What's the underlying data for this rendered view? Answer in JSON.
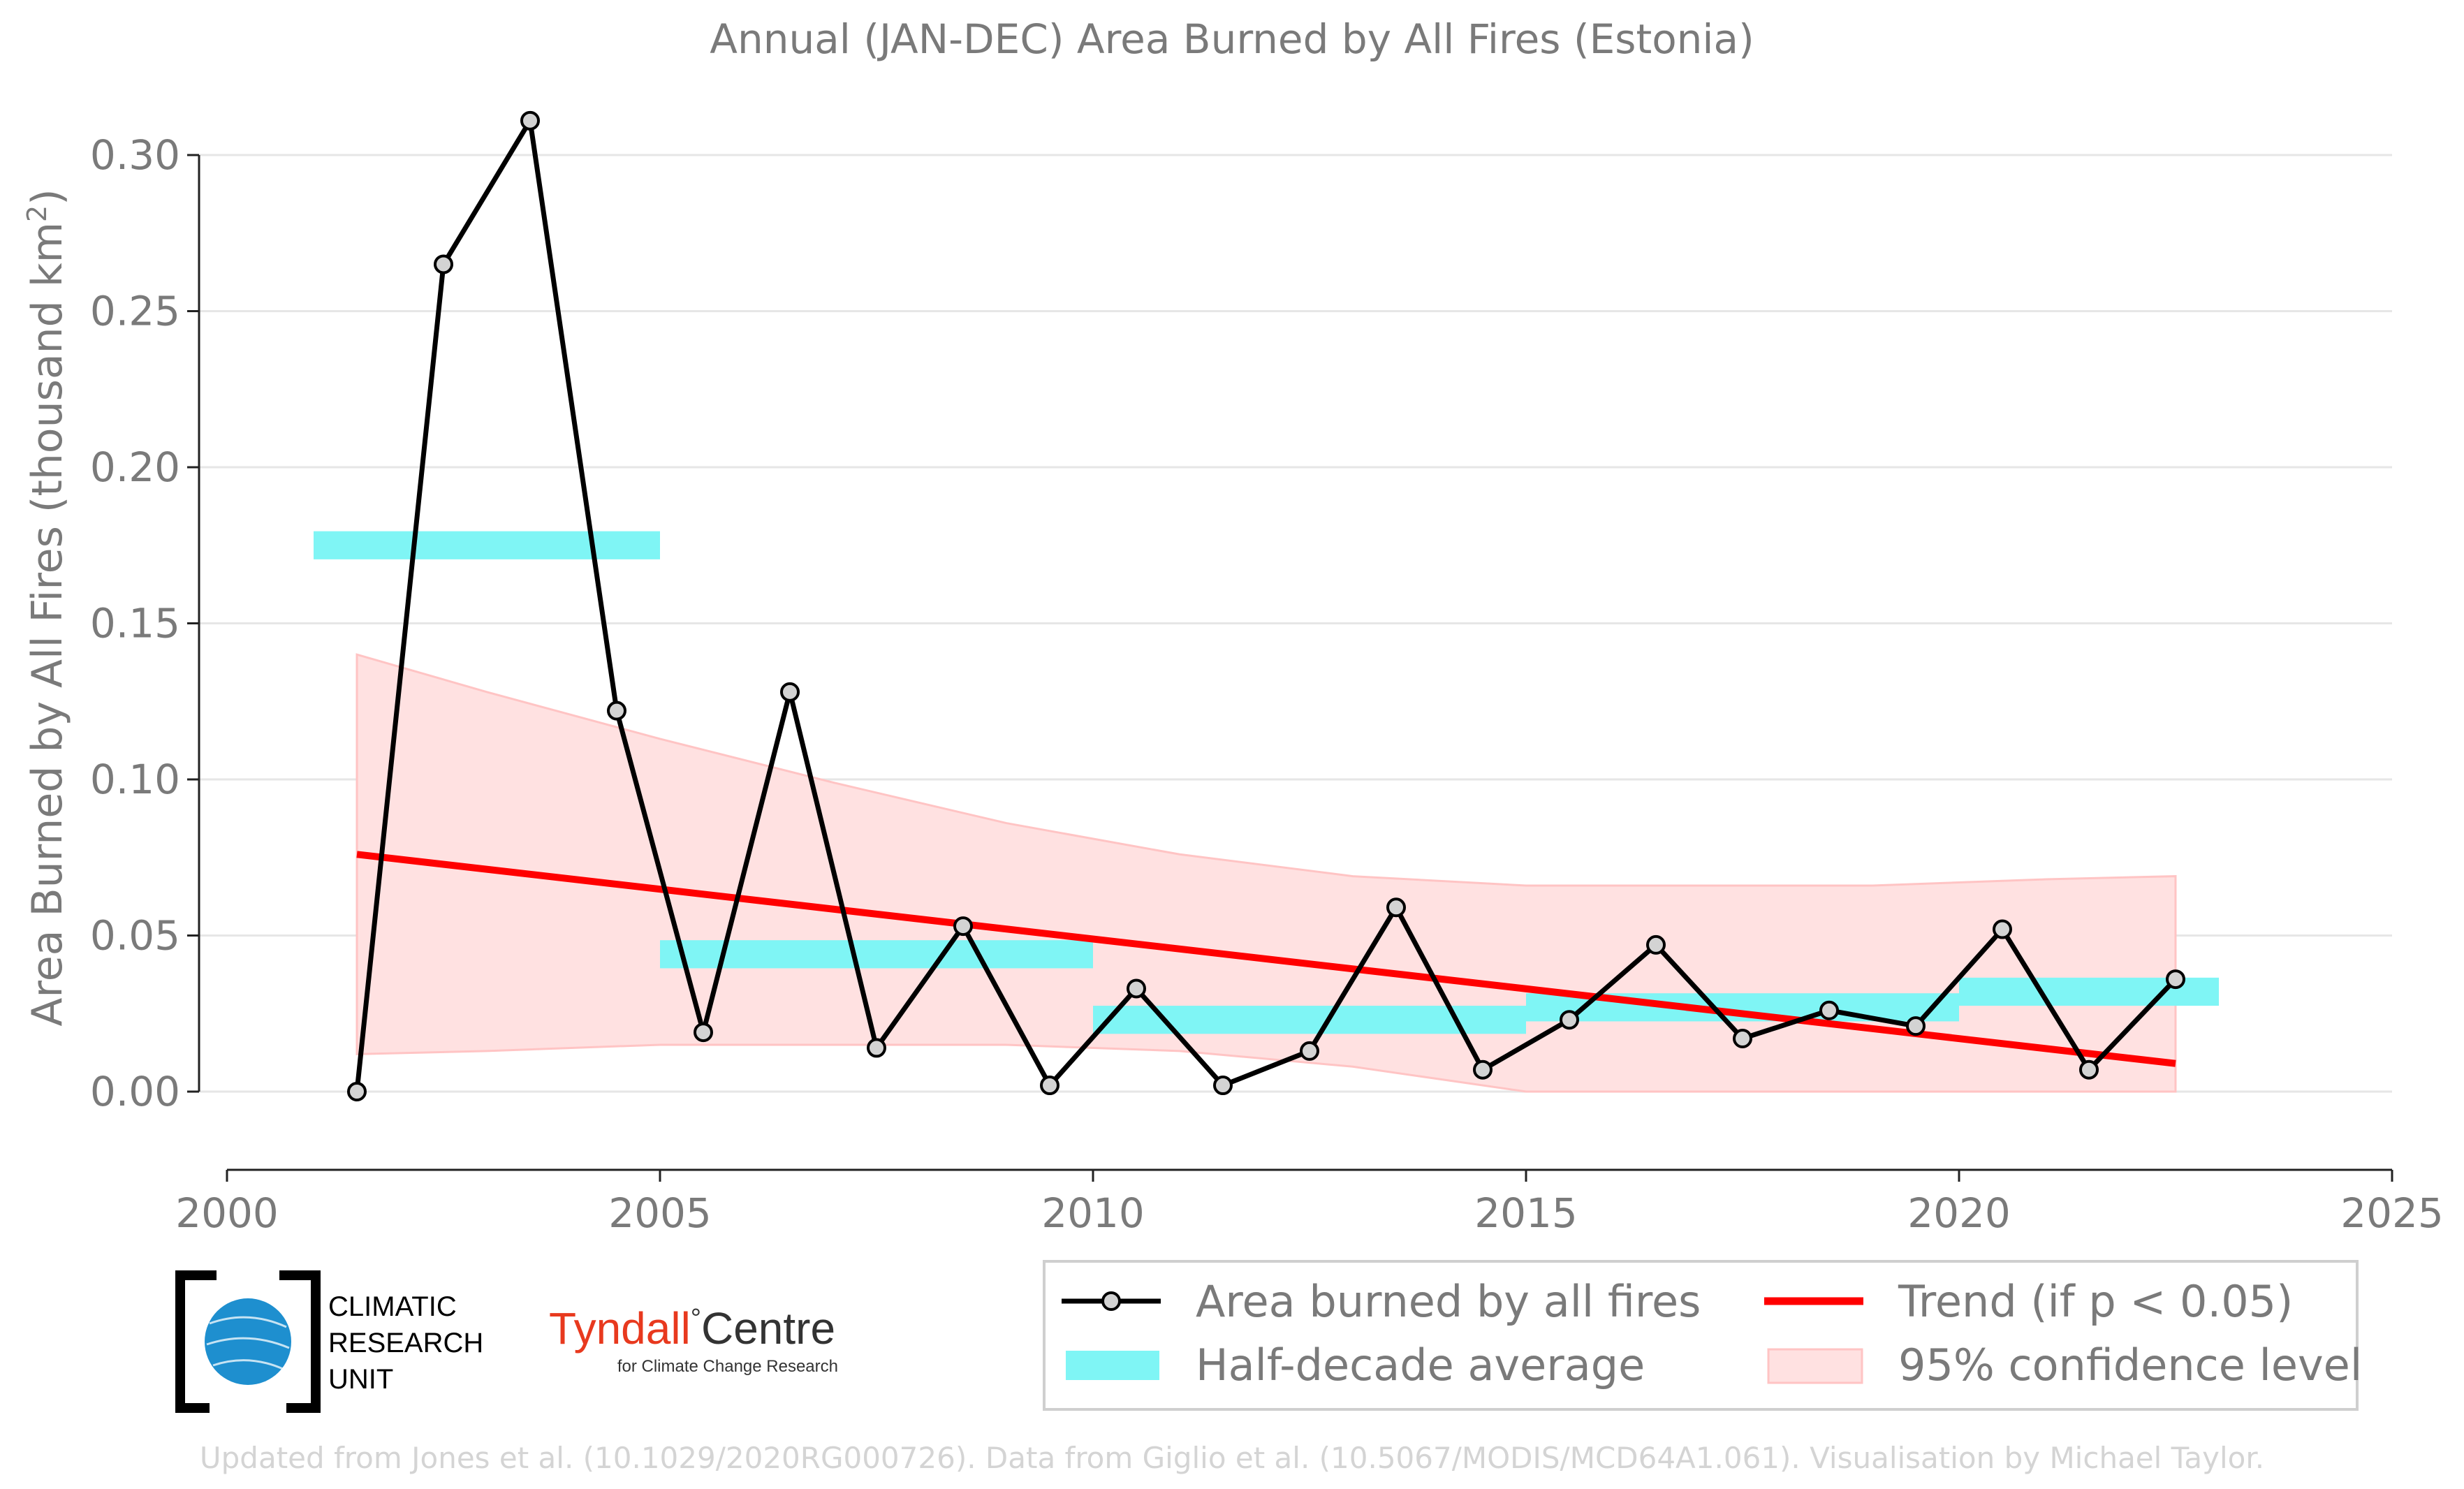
{
  "chart_data": {
    "type": "line",
    "title": "Annual (JAN-DEC) Area Burned by All Fires (Estonia)",
    "ylabel": "Area Burned by All Fires (thousand km",
    "ylabel_sup": "2",
    "ylabel_end": ")",
    "xlabel": "",
    "xlim": [
      2000,
      2025
    ],
    "ylim": [
      -0.025,
      0.31
    ],
    "x_ticks": [
      2000,
      2005,
      2010,
      2015,
      2020,
      2025
    ],
    "x_tick_labels": [
      "2000",
      "2005",
      "2010",
      "2015",
      "2020",
      "2025"
    ],
    "y_ticks": [
      0.0,
      0.05,
      0.1,
      0.15,
      0.2,
      0.25,
      0.3
    ],
    "y_tick_labels": [
      "0.00",
      "0.05",
      "0.10",
      "0.15",
      "0.20",
      "0.25",
      "0.30"
    ],
    "grid": "horizontal",
    "series": [
      {
        "name": "Area burned by all fires",
        "kind": "line-markers",
        "color": "#000000",
        "marker_fill": "#d3d3d3",
        "x": [
          2001.5,
          2002.5,
          2003.5,
          2004.5,
          2005.5,
          2006.5,
          2007.5,
          2008.5,
          2009.5,
          2010.5,
          2011.5,
          2012.5,
          2013.5,
          2014.5,
          2015.5,
          2016.5,
          2017.5,
          2018.5,
          2019.5,
          2020.5,
          2021.5,
          2022.5
        ],
        "y": [
          0.0,
          0.265,
          0.311,
          0.122,
          0.019,
          0.128,
          0.014,
          0.053,
          0.002,
          0.033,
          0.002,
          0.013,
          0.059,
          0.007,
          0.023,
          0.047,
          0.017,
          0.026,
          0.021,
          0.052,
          0.007,
          0.036
        ]
      },
      {
        "name": "Half-decade average",
        "kind": "bands",
        "color": "#7ff5f5",
        "bands": [
          {
            "x0": 2001.0,
            "x1": 2005.0,
            "y": 0.175
          },
          {
            "x0": 2005.0,
            "x1": 2010.0,
            "y": 0.044
          },
          {
            "x0": 2010.0,
            "x1": 2015.0,
            "y": 0.023
          },
          {
            "x0": 2015.0,
            "x1": 2020.0,
            "y": 0.027
          },
          {
            "x0": 2020.0,
            "x1": 2023.0,
            "y": 0.032
          }
        ],
        "band_thickness": 0.009
      },
      {
        "name": "Trend (if p < 0.05)",
        "kind": "trend",
        "color": "#ff0000",
        "x": [
          2001.5,
          2022.5
        ],
        "y": [
          0.076,
          0.009
        ]
      },
      {
        "name": "95% confidence level",
        "kind": "confidence",
        "color": "#ffe1e1",
        "edge_color": "#ffc4c4",
        "x": [
          2001.5,
          2003.0,
          2005.0,
          2007.0,
          2009.0,
          2011.0,
          2013.0,
          2015.0,
          2017.0,
          2019.0,
          2021.0,
          2022.5
        ],
        "upper": [
          0.14,
          0.128,
          0.113,
          0.099,
          0.086,
          0.076,
          0.069,
          0.066,
          0.066,
          0.066,
          0.068,
          0.069
        ],
        "lower": [
          0.012,
          0.013,
          0.015,
          0.015,
          0.015,
          0.013,
          0.008,
          0.0,
          0.0,
          0.0,
          0.0,
          0.0
        ]
      }
    ],
    "legend": {
      "placement": "bottom-right",
      "entries": [
        "Area burned by all fires",
        "Half-decade average",
        "Trend (if p < 0.05)",
        "95% confidence level"
      ]
    }
  },
  "logos": {
    "cru_lines": [
      "CLIMATIC",
      "RESEARCH",
      "UNIT"
    ],
    "tyndall_name": "Tyndall",
    "tyndall_degree": "°",
    "tyndall_centre": "Centre",
    "tyndall_sub": "for Climate Change Research",
    "tyndall_color": "#e8391e"
  },
  "credit": "Updated from Jones et al. (10.1029/2020RG000726). Data from Giglio et al. (10.5067/MODIS/MCD64A1.061). Visualisation by Michael Taylor."
}
